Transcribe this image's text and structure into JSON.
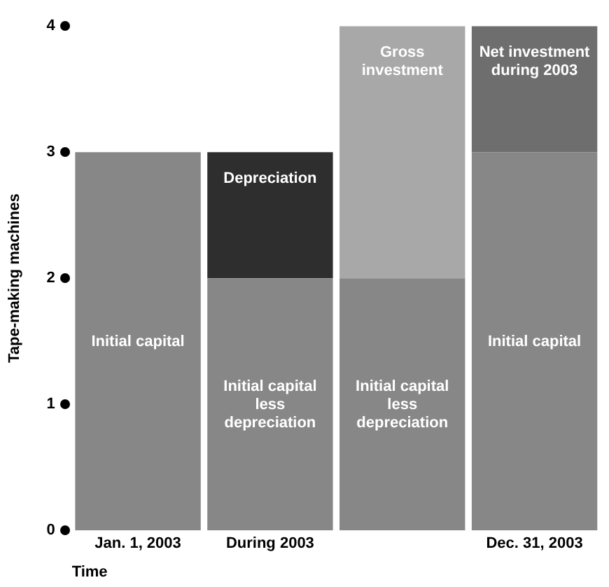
{
  "chart_data": {
    "type": "bar",
    "stacked": true,
    "categories": [
      "Jan. 1, 2003",
      "During 2003",
      null,
      "Dec. 31, 2003"
    ],
    "series": [
      {
        "colors": [
          "#878787",
          "#878787",
          "#878787",
          "#878787"
        ],
        "values": [
          3,
          2,
          2,
          3
        ],
        "value_labels": [
          "Initial capital",
          "Initial capital less depreciation",
          "Initial capital less depreciation",
          "Initial capital"
        ]
      },
      {
        "colors": [
          "#878787",
          "#2e2e2e",
          "#a8a8a8",
          "#6e6e6e"
        ],
        "values": [
          null,
          1,
          2,
          1
        ],
        "value_labels": [
          null,
          "Depreciation",
          "Gross investment",
          "Net investment during 2003"
        ]
      }
    ],
    "ylim": [
      0,
      4
    ],
    "yticks": [
      0,
      1,
      2,
      3,
      4
    ],
    "ylabel": "Tape-making machines",
    "xlabel": "Time",
    "grid": false,
    "legend": false
  }
}
